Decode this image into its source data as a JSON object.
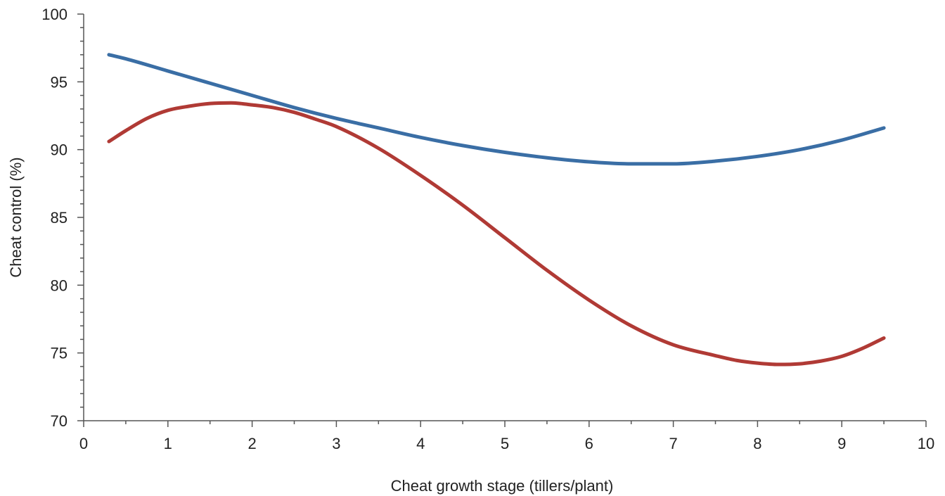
{
  "chart_data": {
    "type": "line",
    "xlabel": "Cheat growth stage (tillers/plant)",
    "ylabel": "Cheat control (%)",
    "xlim": [
      0,
      10
    ],
    "ylim": [
      70,
      100
    ],
    "x_major_ticks": [
      0,
      1,
      2,
      3,
      4,
      5,
      6,
      7,
      8,
      9,
      10
    ],
    "x_minor_step": 0.5,
    "y_major_ticks": [
      70,
      75,
      80,
      85,
      90,
      95,
      100
    ],
    "y_minor_step": 1,
    "grid": false,
    "legend": "none",
    "series": [
      {
        "color": "#3a6ea5",
        "x": [
          0.3,
          0.5,
          1,
          1.5,
          2,
          2.5,
          3,
          3.5,
          4,
          4.5,
          5,
          5.5,
          6,
          6.5,
          7,
          7.5,
          8,
          8.5,
          9,
          9.5
        ],
        "values": [
          97.0,
          96.7,
          95.8,
          94.9,
          94.0,
          93.1,
          92.3,
          91.6,
          90.9,
          90.3,
          89.8,
          89.4,
          89.1,
          88.95,
          88.95,
          89.15,
          89.5,
          90.0,
          90.7,
          91.6
        ]
      },
      {
        "color": "#b03a35",
        "x": [
          0.3,
          0.5,
          0.75,
          1,
          1.25,
          1.5,
          1.75,
          2,
          2.25,
          2.5,
          2.75,
          3,
          3.5,
          4,
          4.5,
          5,
          5.5,
          6,
          6.5,
          7,
          7.5,
          7.75,
          8,
          8.25,
          8.5,
          8.75,
          9,
          9.25,
          9.5
        ],
        "values": [
          90.6,
          91.4,
          92.3,
          92.9,
          93.2,
          93.4,
          93.45,
          93.3,
          93.1,
          92.75,
          92.25,
          91.7,
          90.1,
          88.1,
          85.9,
          83.5,
          81.1,
          78.9,
          77.0,
          75.6,
          74.8,
          74.45,
          74.25,
          74.15,
          74.2,
          74.4,
          74.75,
          75.35,
          76.1
        ]
      }
    ]
  }
}
